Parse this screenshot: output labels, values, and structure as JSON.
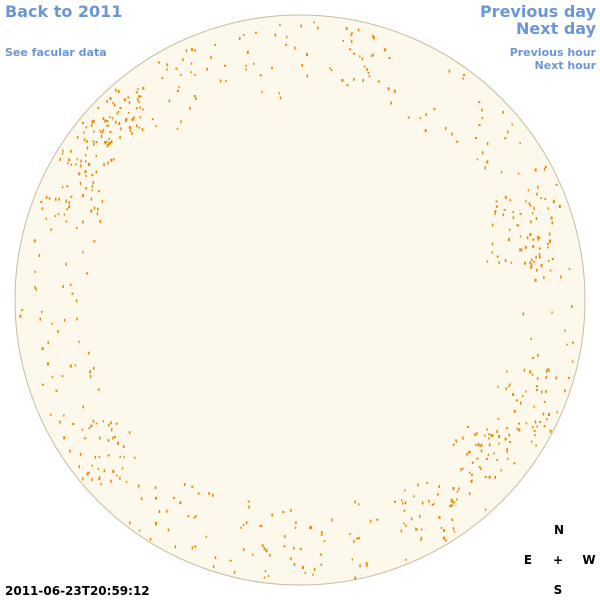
{
  "nav": {
    "back": "Back to 2011",
    "facular": "See facular data",
    "previous_day": "Previous day",
    "next_day": "Next day",
    "previous_hour": "Previous hour",
    "next_hour": "Next hour"
  },
  "timestamp": "2011-06-23T20:59:12",
  "compass": {
    "north": "N",
    "east": "E",
    "center": "+",
    "west": "W",
    "south": "S"
  }
}
